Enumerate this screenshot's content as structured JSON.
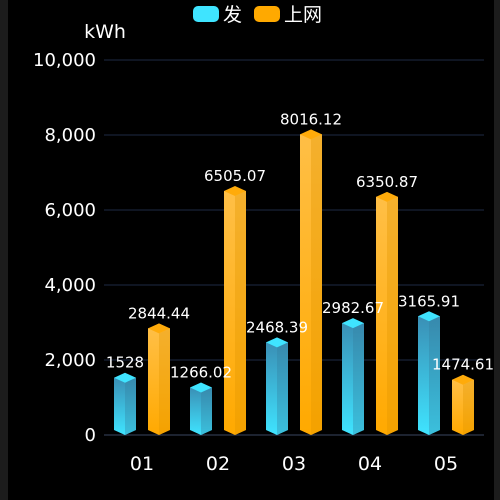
{
  "chart_data": {
    "type": "bar",
    "categories": [
      "01",
      "02",
      "03",
      "04",
      "05"
    ],
    "series": [
      {
        "name": "发",
        "values": [
          1528,
          1266.02,
          2468.39,
          2982.67,
          3165.91
        ],
        "value_labels": [
          "1528",
          "1266.02",
          "2468.39",
          "2982.67",
          "3165.91"
        ],
        "color_top": "#3a8fb5",
        "color_bottom": "#3fe4ff"
      },
      {
        "name": "上网",
        "values": [
          2844.44,
          6505.07,
          8016.12,
          6350.87,
          1474.61
        ],
        "value_labels": [
          "2844.44",
          "6505.07",
          "8016.12",
          "6350.87",
          "1474.61"
        ],
        "color_top": "#ffbf46",
        "color_bottom": "#ffa900"
      }
    ],
    "ylabel": "kWh",
    "ylim": [
      0,
      10000
    ],
    "yticks": [
      0,
      2000,
      4000,
      6000,
      8000,
      10000
    ],
    "ytick_labels": [
      "0",
      "2,000",
      "4,000",
      "6,000",
      "8,000",
      "10,000"
    ],
    "grid": true,
    "legend_position": "top-center",
    "bar_style": "3d-cylinder"
  }
}
